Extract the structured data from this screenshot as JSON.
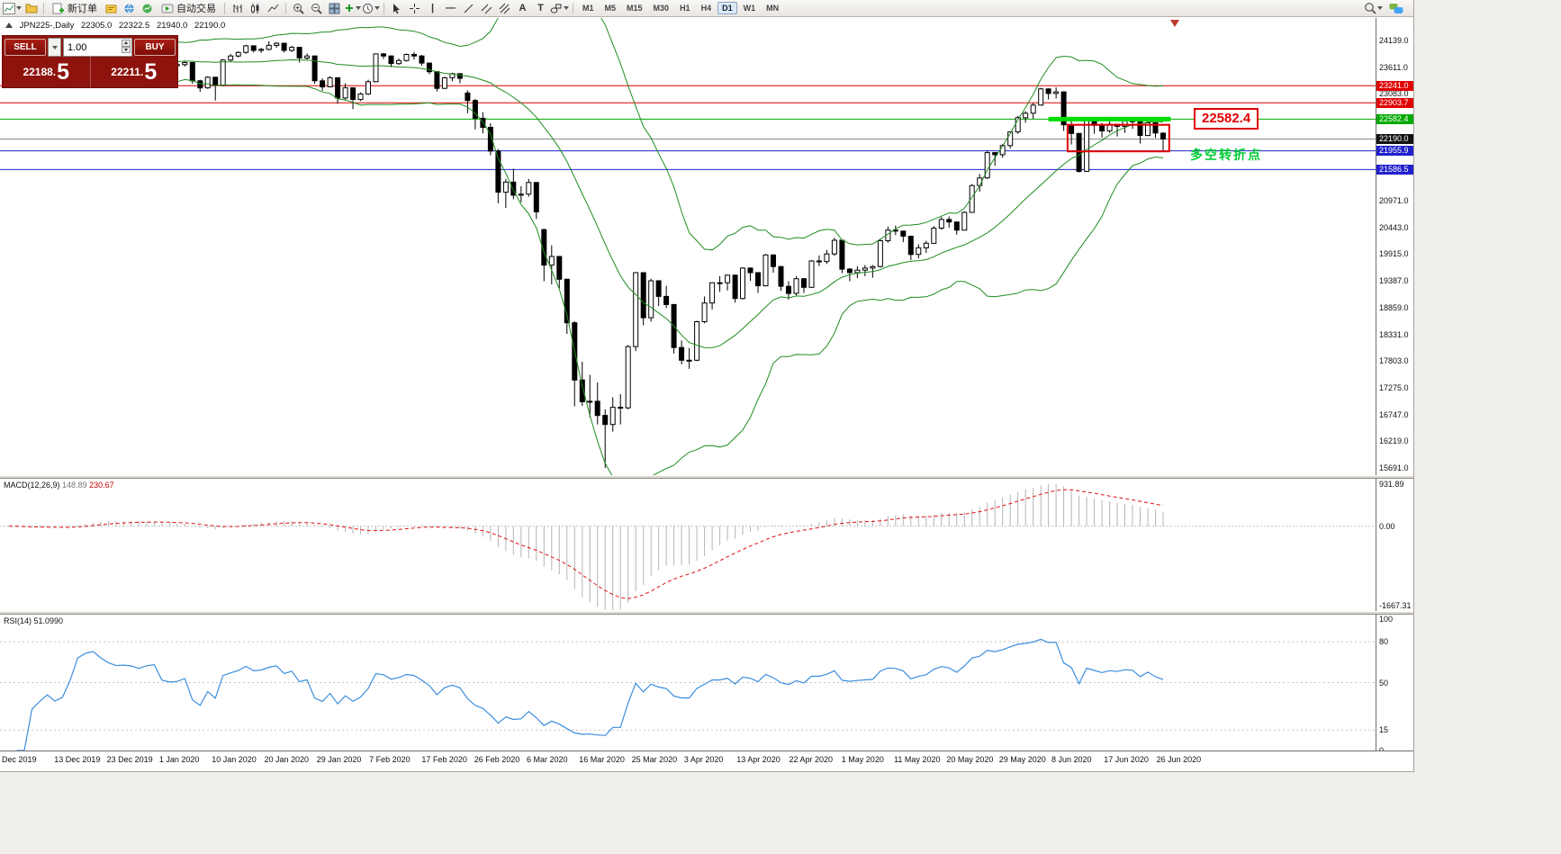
{
  "toolbar": {
    "new_order": "新订单",
    "autotrading": "自动交易",
    "text_a": "A",
    "text_t": "T",
    "timeframes": [
      "M1",
      "M5",
      "M15",
      "M30",
      "H1",
      "H4",
      "D1",
      "W1",
      "MN"
    ],
    "active_timeframe": "D1"
  },
  "trade_panel": {
    "sell_label": "SELL",
    "buy_label": "BUY",
    "volume": "1.00",
    "sell_price_small": "22188.",
    "sell_price_big": "5",
    "buy_price_small": "22211.",
    "buy_price_big": "5"
  },
  "chart_header": {
    "symbol": "JPN225-,Daily",
    "open": "22305.0",
    "high": "22322.5",
    "low": "21940.0",
    "close": "22190.0"
  },
  "annotations": {
    "price_callout": "22582.4",
    "note_text": "多空转折点"
  },
  "indicator_labels": {
    "macd_name": "MACD(12,26,9)",
    "macd_value": "148.89",
    "macd_signal_value": "230.67",
    "macd_axis": [
      "931.89",
      "0.00",
      "-1667.31"
    ],
    "rsi_name": "RSI(14)",
    "rsi_value": "51.0990",
    "rsi_axis": [
      100,
      80,
      50,
      15,
      0
    ]
  },
  "time_axis": [
    "Dec 2019",
    "13 Dec 2019",
    "23 Dec 2019",
    "1 Jan 2020",
    "10 Jan 2020",
    "20 Jan 2020",
    "29 Jan 2020",
    "7 Feb 2020",
    "17 Feb 2020",
    "26 Feb 2020",
    "6 Mar 2020",
    "16 Mar 2020",
    "25 Mar 2020",
    "3 Apr 2020",
    "13 Apr 2020",
    "22 Apr 2020",
    "1 May 2020",
    "11 May 2020",
    "20 May 2020",
    "29 May 2020",
    "8 Jun 2020",
    "17 Jun 2020",
    "26 Jun 2020"
  ],
  "price_axis_ticks": [
    24139.0,
    23611.0,
    23083.0,
    20971.0,
    20443.0,
    19915.0,
    19387.0,
    18859.0,
    18331.0,
    17803.0,
    17275.0,
    16747.0,
    16219.0,
    15691.0
  ],
  "current_price": 22190.0,
  "chart_data": {
    "type": "candlestick",
    "symbol": "JPN225-",
    "timeframe": "Daily",
    "last_ohlc": {
      "open": 22305.0,
      "high": 22322.5,
      "low": 21940.0,
      "close": 22190.0
    },
    "candles": [
      [
        23480,
        23560,
        23430,
        23530
      ],
      [
        23530,
        23540,
        23330,
        23380
      ],
      [
        23380,
        23420,
        23260,
        23300
      ],
      [
        23300,
        23450,
        23280,
        23400
      ],
      [
        23400,
        23470,
        23360,
        23430
      ],
      [
        23430,
        23500,
        23390,
        23460
      ],
      [
        23460,
        23480,
        23350,
        23410
      ],
      [
        23410,
        23460,
        23370,
        23430
      ],
      [
        23430,
        23580,
        23400,
        23550
      ],
      [
        23550,
        23880,
        23540,
        23850
      ],
      [
        23850,
        23980,
        23800,
        23950
      ],
      [
        23950,
        24050,
        23900,
        24000
      ],
      [
        24000,
        24010,
        23890,
        23930
      ],
      [
        23930,
        23960,
        23840,
        23870
      ],
      [
        23870,
        23920,
        23790,
        23830
      ],
      [
        23830,
        23880,
        23800,
        23840
      ],
      [
        23840,
        23870,
        23790,
        23830
      ],
      [
        23830,
        23850,
        23770,
        23800
      ],
      [
        23800,
        23870,
        23780,
        23850
      ],
      [
        23850,
        23900,
        23820,
        23870
      ],
      [
        23870,
        23880,
        23640,
        23680
      ],
      [
        23680,
        23720,
        23610,
        23650
      ],
      [
        23650,
        23690,
        23610,
        23660
      ],
      [
        23660,
        23740,
        23620,
        23700
      ],
      [
        23700,
        23710,
        23280,
        23340
      ],
      [
        23340,
        23360,
        23120,
        23200
      ],
      [
        23200,
        23430,
        23180,
        23410
      ],
      [
        23410,
        23420,
        22950,
        23250
      ],
      [
        23250,
        23770,
        23240,
        23750
      ],
      [
        23750,
        23870,
        23720,
        23830
      ],
      [
        23830,
        23920,
        23800,
        23900
      ],
      [
        23900,
        24050,
        23870,
        24030
      ],
      [
        24030,
        24040,
        23900,
        23940
      ],
      [
        23940,
        23990,
        23890,
        23960
      ],
      [
        23960,
        24120,
        23940,
        24040
      ],
      [
        24040,
        24100,
        23990,
        24080
      ],
      [
        24080,
        24090,
        23900,
        23940
      ],
      [
        23940,
        24030,
        23910,
        24000
      ],
      [
        24000,
        24010,
        23700,
        23790
      ],
      [
        23790,
        23880,
        23740,
        23830
      ],
      [
        23830,
        23840,
        23280,
        23340
      ],
      [
        23340,
        23390,
        23140,
        23220
      ],
      [
        23220,
        23430,
        23210,
        23400
      ],
      [
        23400,
        23410,
        22890,
        23000
      ],
      [
        23000,
        23290,
        22950,
        23200
      ],
      [
        23200,
        23210,
        22780,
        22970
      ],
      [
        22970,
        23110,
        22940,
        23080
      ],
      [
        23080,
        23360,
        23060,
        23320
      ],
      [
        23320,
        23880,
        23310,
        23870
      ],
      [
        23870,
        23890,
        23770,
        23830
      ],
      [
        23830,
        23840,
        23610,
        23680
      ],
      [
        23680,
        23780,
        23650,
        23740
      ],
      [
        23740,
        23880,
        23720,
        23860
      ],
      [
        23860,
        23910,
        23760,
        23830
      ],
      [
        23830,
        23850,
        23640,
        23690
      ],
      [
        23690,
        23700,
        23470,
        23520
      ],
      [
        23520,
        23530,
        23130,
        23190
      ],
      [
        23190,
        23420,
        23180,
        23400
      ],
      [
        23400,
        23500,
        23330,
        23480
      ],
      [
        23480,
        23490,
        23290,
        23390
      ],
      [
        23100,
        23150,
        22700,
        22950
      ],
      [
        22950,
        22980,
        22380,
        22600
      ],
      [
        22600,
        22720,
        22300,
        22420
      ],
      [
        22420,
        22500,
        21870,
        21950
      ],
      [
        21950,
        21990,
        20920,
        21140
      ],
      [
        21140,
        21400,
        20830,
        21340
      ],
      [
        21340,
        21600,
        21000,
        21080
      ],
      [
        21080,
        21260,
        20940,
        21100
      ],
      [
        21100,
        21400,
        21050,
        21330
      ],
      [
        21330,
        21340,
        20610,
        20750
      ],
      [
        20400,
        20420,
        19380,
        19700
      ],
      [
        19700,
        20090,
        19320,
        19870
      ],
      [
        19870,
        19880,
        19240,
        19420
      ],
      [
        19420,
        19430,
        18340,
        18560
      ],
      [
        18560,
        18590,
        16910,
        17430
      ],
      [
        17430,
        17790,
        16920,
        17000
      ],
      [
        17000,
        17530,
        16690,
        17010
      ],
      [
        17010,
        17380,
        16550,
        16730
      ],
      [
        16730,
        16850,
        15690,
        16550
      ],
      [
        16550,
        17090,
        16410,
        16890
      ],
      [
        16890,
        17150,
        16550,
        16880
      ],
      [
        16880,
        18120,
        16850,
        18090
      ],
      [
        18090,
        19560,
        18000,
        19550
      ],
      [
        19550,
        19560,
        18510,
        18660
      ],
      [
        18660,
        19430,
        18580,
        19390
      ],
      [
        19390,
        19400,
        18890,
        19080
      ],
      [
        19080,
        19290,
        18850,
        18920
      ],
      [
        18920,
        18930,
        17950,
        18070
      ],
      [
        18070,
        18210,
        17740,
        17820
      ],
      [
        17820,
        18060,
        17650,
        17820
      ],
      [
        17820,
        18600,
        17800,
        18580
      ],
      [
        18580,
        19080,
        18550,
        18950
      ],
      [
        18950,
        19360,
        18820,
        19350
      ],
      [
        19350,
        19480,
        19170,
        19350
      ],
      [
        19350,
        19510,
        19200,
        19500
      ],
      [
        19500,
        19510,
        18960,
        19040
      ],
      [
        19040,
        19660,
        19020,
        19640
      ],
      [
        19640,
        19650,
        19390,
        19550
      ],
      [
        19550,
        19560,
        19150,
        19290
      ],
      [
        19290,
        19920,
        19280,
        19900
      ],
      [
        19900,
        19910,
        19550,
        19670
      ],
      [
        19670,
        19680,
        19190,
        19280
      ],
      [
        19280,
        19380,
        19020,
        19140
      ],
      [
        19140,
        19480,
        19100,
        19430
      ],
      [
        19430,
        19440,
        19150,
        19260
      ],
      [
        19260,
        19800,
        19250,
        19780
      ],
      [
        19780,
        19890,
        19680,
        19770
      ],
      [
        19770,
        20000,
        19720,
        19920
      ],
      [
        19920,
        20240,
        19880,
        20190
      ],
      [
        20190,
        20200,
        19540,
        19620
      ],
      [
        19620,
        19640,
        19380,
        19550
      ],
      [
        19550,
        19680,
        19440,
        19600
      ],
      [
        19600,
        19700,
        19480,
        19640
      ],
      [
        19640,
        19700,
        19450,
        19670
      ],
      [
        19670,
        20220,
        19650,
        20180
      ],
      [
        20180,
        20460,
        20140,
        20390
      ],
      [
        20390,
        20480,
        20290,
        20370
      ],
      [
        20370,
        20380,
        20150,
        20270
      ],
      [
        20270,
        20280,
        19800,
        19910
      ],
      [
        19910,
        20110,
        19830,
        20040
      ],
      [
        20040,
        20180,
        19940,
        20130
      ],
      [
        20130,
        20470,
        20120,
        20430
      ],
      [
        20430,
        20650,
        20400,
        20600
      ],
      [
        20600,
        20660,
        20440,
        20550
      ],
      [
        20550,
        20560,
        20300,
        20390
      ],
      [
        20390,
        20760,
        20380,
        20740
      ],
      [
        20740,
        21300,
        20730,
        21270
      ],
      [
        21270,
        21500,
        21150,
        21420
      ],
      [
        21420,
        21960,
        21400,
        21920
      ],
      [
        21920,
        21930,
        21660,
        21880
      ],
      [
        21880,
        22090,
        21820,
        22060
      ],
      [
        22060,
        22340,
        22000,
        22330
      ],
      [
        22330,
        22650,
        22290,
        22610
      ],
      [
        22610,
        22740,
        22510,
        22700
      ],
      [
        22700,
        22900,
        22590,
        22860
      ],
      [
        22860,
        23200,
        22850,
        23180
      ],
      [
        23180,
        23190,
        22970,
        23090
      ],
      [
        23090,
        23210,
        22990,
        23120
      ],
      [
        23120,
        23130,
        22350,
        22470
      ],
      [
        22470,
        22620,
        22080,
        22300
      ],
      [
        22300,
        22310,
        21530,
        21550
      ],
      [
        21550,
        22600,
        21540,
        22580
      ],
      [
        22580,
        22590,
        22290,
        22460
      ],
      [
        22460,
        22510,
        22220,
        22350
      ],
      [
        22350,
        22630,
        22310,
        22480
      ],
      [
        22480,
        22490,
        22240,
        22440
      ],
      [
        22440,
        22600,
        22310,
        22550
      ],
      [
        22550,
        22620,
        22390,
        22530
      ],
      [
        22530,
        22540,
        22100,
        22260
      ],
      [
        22260,
        22570,
        22250,
        22510
      ],
      [
        22510,
        22520,
        22210,
        22310
      ],
      [
        22305,
        22322.5,
        21940,
        22190
      ]
    ],
    "bollinger": {
      "period": 20,
      "deviation": 2,
      "color": "#1e8c1e"
    },
    "macd": {
      "fast": 12,
      "slow": 26,
      "signal": 9,
      "hist_color": "#b4b4b4",
      "signal_color": "#e01010",
      "scale_max": 931.89,
      "scale_min": -1667.31
    },
    "rsi": {
      "period": 14,
      "color": "#3b8ede",
      "levels": [
        80,
        50,
        15
      ]
    },
    "hlines": [
      {
        "price": 23241.0,
        "color": "#e00000",
        "label": "23241.0"
      },
      {
        "price": 22903.7,
        "color": "#e00000",
        "label": "22903.7"
      },
      {
        "price": 22582.4,
        "color": "#00aa00",
        "label": "22582.4"
      },
      {
        "price": 21955.9,
        "color": "#2020cc",
        "label": "21955.9"
      },
      {
        "price": 21586.5,
        "color": "#2020cc",
        "label": "21586.5"
      }
    ],
    "thick_segment": {
      "price": 22582.4,
      "from_candle": 136,
      "to_candle": 152,
      "color": "#00dd00"
    },
    "highlight_rect": {
      "from_candle": 138.5,
      "to_candle": 151.8,
      "price_top": 22470,
      "price_bottom": 21945,
      "color": "#e00000"
    }
  }
}
